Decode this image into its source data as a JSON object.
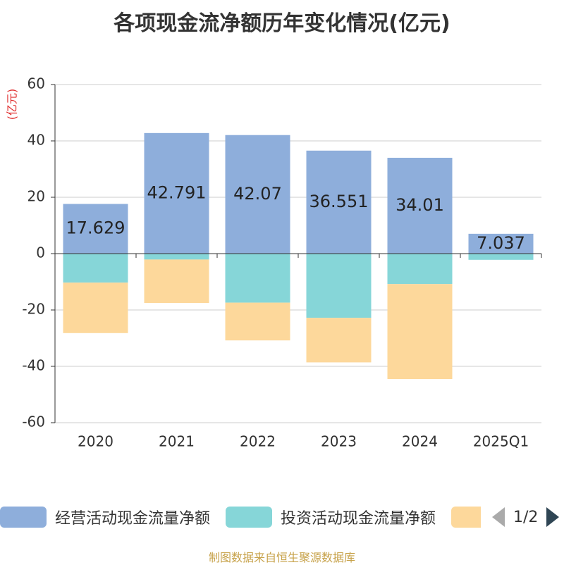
{
  "title": "各项现金流净额历年变化情况(亿元)",
  "unit_label": "(亿元)",
  "legend": {
    "items": [
      {
        "label": "经营活动现金流量净额",
        "color": "#8eaedb"
      },
      {
        "label": "投资活动现金流量净额",
        "color": "#86d6d8"
      },
      {
        "label": "",
        "color": "#fdd89b"
      }
    ],
    "page": "1/2"
  },
  "source": "制图数据来自恒生聚源数据库",
  "colors": {
    "unit": "#e03030",
    "axis": "#333333",
    "grid": "#cccccc",
    "label": "#222222"
  },
  "chart_data": {
    "type": "bar",
    "stacked": true,
    "title": "各项现金流净额历年变化情况(亿元)",
    "ylabel": "(亿元)",
    "ylim": [
      -60,
      60
    ],
    "yticks": [
      60,
      40,
      20,
      0,
      -20,
      -40,
      -60
    ],
    "categories": [
      "2020",
      "2021",
      "2022",
      "2023",
      "2024",
      "2025Q1"
    ],
    "series": [
      {
        "name": "经营活动现金流量净额",
        "color": "#8eaedb",
        "values": [
          17.629,
          42.791,
          42.07,
          36.551,
          34.01,
          7.037
        ],
        "labels": [
          "17.629",
          "42.791",
          "42.07",
          "36.551",
          "34.01",
          "7.037"
        ]
      },
      {
        "name": "投资活动现金流量净额",
        "color": "#86d6d8",
        "values": [
          -10.3,
          -2.1,
          -17.4,
          -22.8,
          -10.8,
          -2.2
        ]
      },
      {
        "name": "",
        "color": "#fdd89b",
        "values": [
          -17.9,
          -15.4,
          -13.4,
          -15.8,
          -33.7,
          0
        ]
      }
    ]
  }
}
